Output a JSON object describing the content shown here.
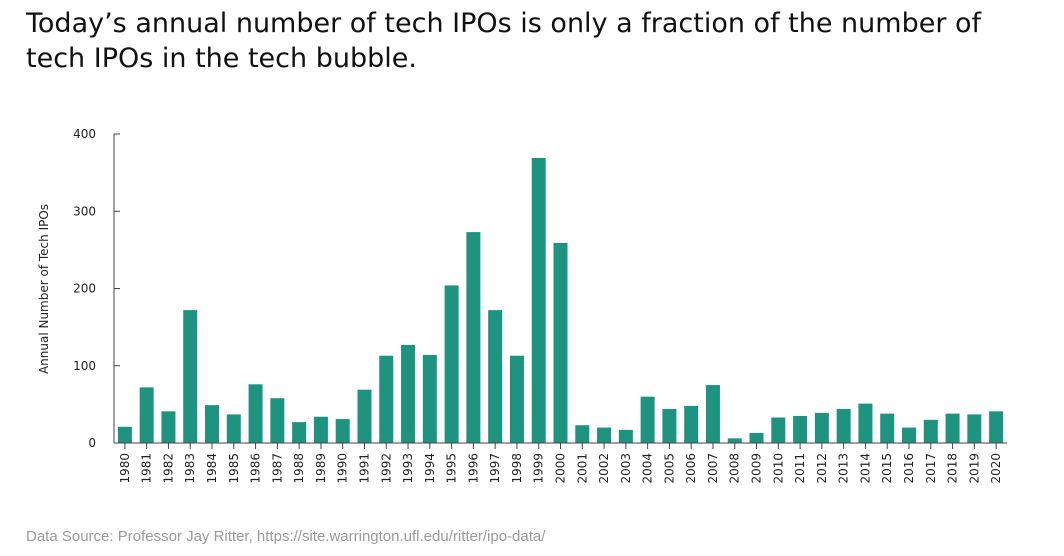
{
  "title": "Today’s annual number of tech IPOs is only a fraction of the number of tech IPOs in the tech bubble.",
  "source": "Data Source: Professor Jay Ritter, https://site.warrington.ufl.edu/ritter/ipo-data/",
  "chart_data": {
    "type": "bar",
    "title": "Today’s annual number of tech IPOs is only a fraction of the number of tech IPOs in the tech bubble.",
    "xlabel": "",
    "ylabel": "Annual Number of Tech IPOs",
    "ylim": [
      0,
      400
    ],
    "yticks": [
      "0",
      "100",
      "200",
      "300",
      "400"
    ],
    "grid": false,
    "bar_color": "#1e9480",
    "categories": [
      "1980",
      "1981",
      "1982",
      "1983",
      "1984",
      "1985",
      "1986",
      "1987",
      "1988",
      "1989",
      "1990",
      "1991",
      "1992",
      "1993",
      "1994",
      "1995",
      "1996",
      "1997",
      "1998",
      "1999",
      "2000",
      "2001",
      "2002",
      "2003",
      "2004",
      "2005",
      "2006",
      "2007",
      "2008",
      "2009",
      "2010",
      "2011",
      "2012",
      "2013",
      "2014",
      "2015",
      "2016",
      "2017",
      "2018",
      "2019",
      "2020"
    ],
    "values": [
      21,
      72,
      41,
      172,
      49,
      37,
      76,
      58,
      27,
      34,
      31,
      69,
      113,
      127,
      114,
      204,
      273,
      172,
      113,
      369,
      259,
      23,
      20,
      17,
      60,
      44,
      48,
      75,
      6,
      13,
      33,
      35,
      39,
      44,
      51,
      38,
      20,
      30,
      38,
      37,
      41
    ]
  }
}
